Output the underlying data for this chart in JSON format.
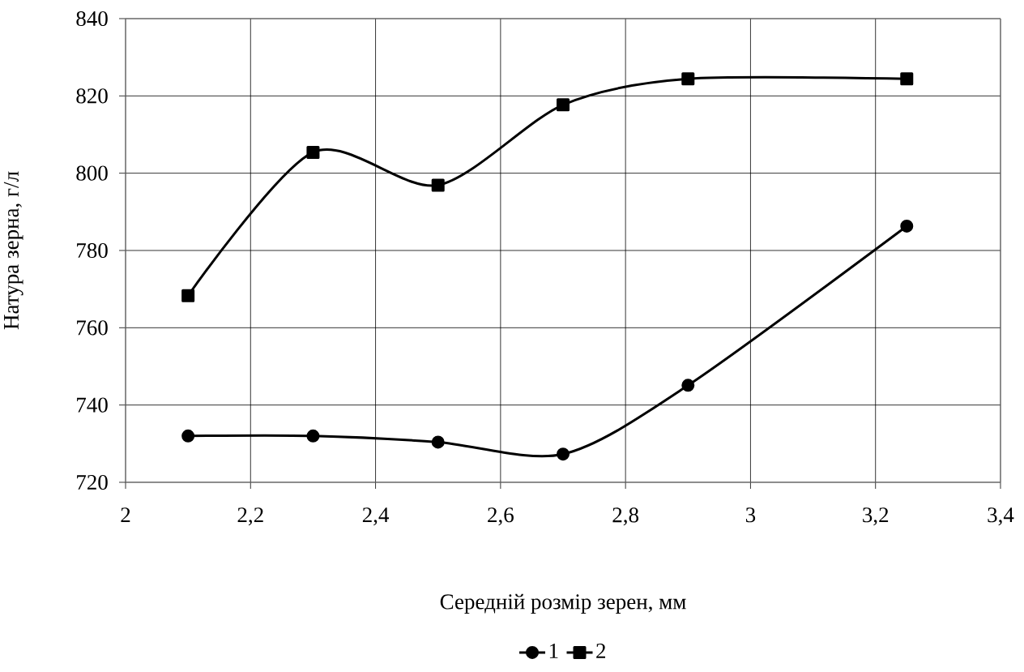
{
  "chart_data": {
    "type": "line",
    "xlabel": "Середній розмір зерен, мм",
    "ylabel": "Натура зерна, г/л",
    "xlim": [
      2,
      3.4
    ],
    "xticks": [
      {
        "value": 2,
        "label": "2"
      },
      {
        "value": 2.2,
        "label": "2,2"
      },
      {
        "value": 2.4,
        "label": "2,4"
      },
      {
        "value": 2.6,
        "label": "2,6"
      },
      {
        "value": 2.8,
        "label": "2,8"
      },
      {
        "value": 3,
        "label": "3"
      },
      {
        "value": 3.2,
        "label": "3,2"
      },
      {
        "value": 3.4,
        "label": "3,4"
      }
    ],
    "ylim": [
      720,
      840
    ],
    "yticks": [
      720,
      740,
      760,
      780,
      800,
      820,
      840
    ],
    "x": [
      2.1,
      2.3,
      2.5,
      2.7,
      2.9,
      3.25
    ],
    "series": [
      {
        "name": "1",
        "color": "#000000",
        "marker": "circle",
        "values": [
          732,
          732,
          730.4,
          727.3,
          745.1,
          786.3
        ]
      },
      {
        "name": "2",
        "color": "#000000",
        "marker": "square",
        "values": [
          768.3,
          805.4,
          796.9,
          817.7,
          824.4,
          824.4
        ]
      }
    ],
    "grid": true,
    "legend": "bottom",
    "line_style": "solid"
  }
}
